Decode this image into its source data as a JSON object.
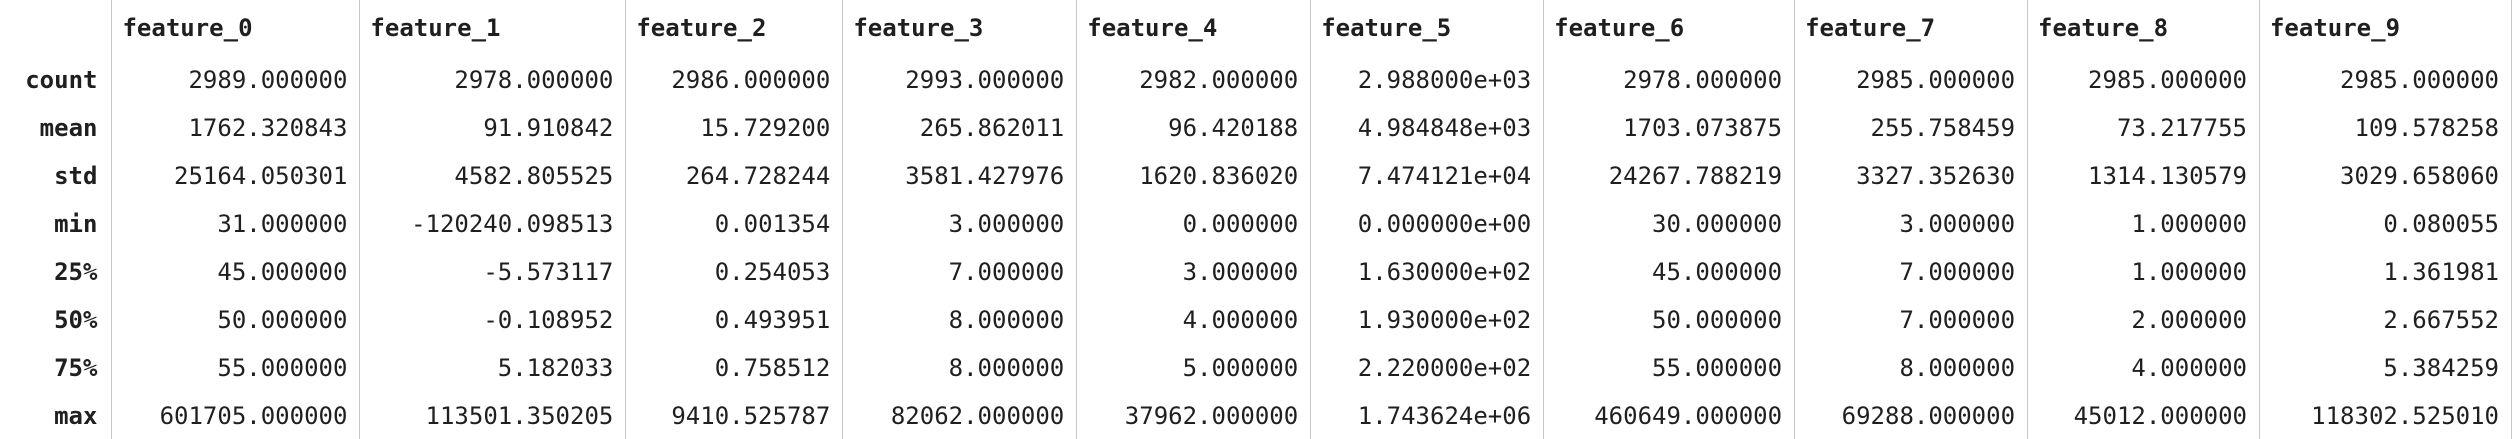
{
  "columns": [
    "feature_0",
    "feature_1",
    "feature_2",
    "feature_3",
    "feature_4",
    "feature_5",
    "feature_6",
    "feature_7",
    "feature_8",
    "feature_9"
  ],
  "rows": [
    {
      "label": "count",
      "values": [
        "2989.000000",
        "2978.000000",
        "2986.000000",
        "2993.000000",
        "2982.000000",
        "2.988000e+03",
        "2978.000000",
        "2985.000000",
        "2985.000000",
        "2985.000000"
      ]
    },
    {
      "label": "mean",
      "values": [
        "1762.320843",
        "91.910842",
        "15.729200",
        "265.862011",
        "96.420188",
        "4.984848e+03",
        "1703.073875",
        "255.758459",
        "73.217755",
        "109.578258"
      ]
    },
    {
      "label": "std",
      "values": [
        "25164.050301",
        "4582.805525",
        "264.728244",
        "3581.427976",
        "1620.836020",
        "7.474121e+04",
        "24267.788219",
        "3327.352630",
        "1314.130579",
        "3029.658060"
      ]
    },
    {
      "label": "min",
      "values": [
        "31.000000",
        "-120240.098513",
        "0.001354",
        "3.000000",
        "0.000000",
        "0.000000e+00",
        "30.000000",
        "3.000000",
        "1.000000",
        "0.080055"
      ]
    },
    {
      "label": "25%",
      "values": [
        "45.000000",
        "-5.573117",
        "0.254053",
        "7.000000",
        "3.000000",
        "1.630000e+02",
        "45.000000",
        "7.000000",
        "1.000000",
        "1.361981"
      ]
    },
    {
      "label": "50%",
      "values": [
        "50.000000",
        "-0.108952",
        "0.493951",
        "8.000000",
        "4.000000",
        "1.930000e+02",
        "50.000000",
        "7.000000",
        "2.000000",
        "2.667552"
      ]
    },
    {
      "label": "75%",
      "values": [
        "55.000000",
        "5.182033",
        "0.758512",
        "8.000000",
        "5.000000",
        "2.220000e+02",
        "55.000000",
        "8.000000",
        "4.000000",
        "5.384259"
      ]
    },
    {
      "label": "max",
      "values": [
        "601705.000000",
        "113501.350205",
        "9410.525787",
        "82062.000000",
        "37962.000000",
        "1.743624e+06",
        "460649.000000",
        "69288.000000",
        "45012.000000",
        "118302.525010"
      ]
    }
  ]
}
